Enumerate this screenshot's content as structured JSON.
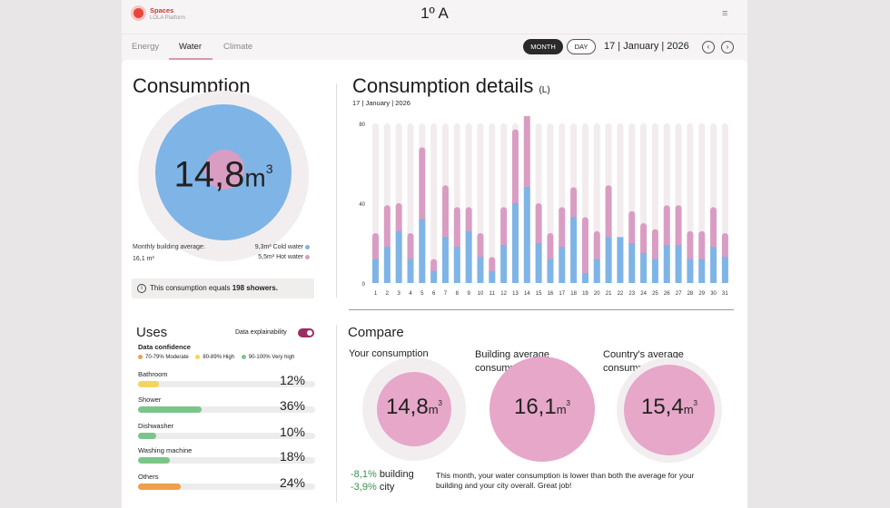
{
  "brand": {
    "name": "Spaces",
    "sub": "LOLA Platform"
  },
  "room": "1º A",
  "tabs": [
    {
      "label": "Energy"
    },
    {
      "label": "Water"
    },
    {
      "label": "Climate"
    }
  ],
  "period": {
    "month": "MONTH",
    "day": "DAY",
    "date": "17 | January | 2026"
  },
  "consumption": {
    "title": "Consumption",
    "value": "14,8",
    "unit": "m",
    "unit_sup": "3",
    "avg_label": "Monthly building average:",
    "avg_value": "16,1 m³",
    "cold": "9,3m³ Cold water",
    "hot": "5,5m³ Hot water",
    "info_prefix": "This consumption equals ",
    "info_bold": "198 showers.",
    "cold_m3": 9.3,
    "hot_m3": 5.5
  },
  "details": {
    "title": "Consumption details",
    "title_unit": "(L)",
    "date": "17 | January | 2026"
  },
  "chart_data": {
    "type": "bar",
    "stacked": true,
    "ylim": [
      0,
      80
    ],
    "yticks": [
      "0",
      "40",
      "80"
    ],
    "categories": [
      "1",
      "2",
      "3",
      "4",
      "5",
      "6",
      "7",
      "8",
      "9",
      "10",
      "11",
      "12",
      "13",
      "14",
      "15",
      "16",
      "17",
      "18",
      "19",
      "20",
      "21",
      "22",
      "23",
      "24",
      "25",
      "26",
      "27",
      "28",
      "29",
      "30",
      "31"
    ],
    "series": [
      {
        "values": [
          12,
          18,
          26,
          12,
          32,
          6,
          23,
          18,
          26,
          13,
          6,
          19,
          40,
          48,
          20,
          12,
          18,
          33,
          5,
          12,
          23,
          23,
          20,
          15,
          12,
          19,
          19,
          12,
          12,
          18,
          13
        ]
      },
      {
        "values": [
          13,
          21,
          14,
          13,
          36,
          6,
          26,
          20,
          12,
          12,
          7,
          19,
          37,
          37,
          20,
          13,
          20,
          15,
          28,
          14,
          26,
          0,
          16,
          15,
          15,
          20,
          20,
          14,
          14,
          20,
          12
        ]
      }
    ],
    "colors": {
      "cold": "#7fb4e6",
      "hot": "#d99dc3",
      "track": "#f2ecee"
    }
  },
  "uses": {
    "title": "Uses",
    "explain_label": "Data explainability",
    "confidence_title": "Data confidence",
    "legend": [
      {
        "label": "70-79% Moderate",
        "color": "#f0a04b"
      },
      {
        "label": "80-89% High",
        "color": "#f5d45a"
      },
      {
        "label": "90-100% Very high",
        "color": "#7cc58a"
      }
    ],
    "items": [
      {
        "label": "Bathroom",
        "pct": "12%",
        "fill": 0.12,
        "color": "#f5d45a"
      },
      {
        "label": "Shower",
        "pct": "36%",
        "fill": 0.36,
        "color": "#7cc58a"
      },
      {
        "label": "Dishwasher",
        "pct": "10%",
        "fill": 0.1,
        "color": "#7cc58a"
      },
      {
        "label": "Washing machine",
        "pct": "18%",
        "fill": 0.18,
        "color": "#7cc58a"
      },
      {
        "label": "Others",
        "pct": "24%",
        "fill": 0.24,
        "color": "#f0a04b"
      }
    ]
  },
  "compare": {
    "title": "Compare",
    "yours_label": "Your consumption",
    "building_label": "Building average consumption",
    "country_label": "Country's average consumption",
    "yours": "14,8",
    "building": "16,1",
    "country": "15,4",
    "unit": "m",
    "unit_sup": "3",
    "delta_building_value": "-8,1%",
    "delta_building_label": "building",
    "delta_city_value": "-3,9%",
    "delta_city_label": "city",
    "summary": "This month, your water consumption is lower than both the average for your building and your city overall. Great job!"
  }
}
